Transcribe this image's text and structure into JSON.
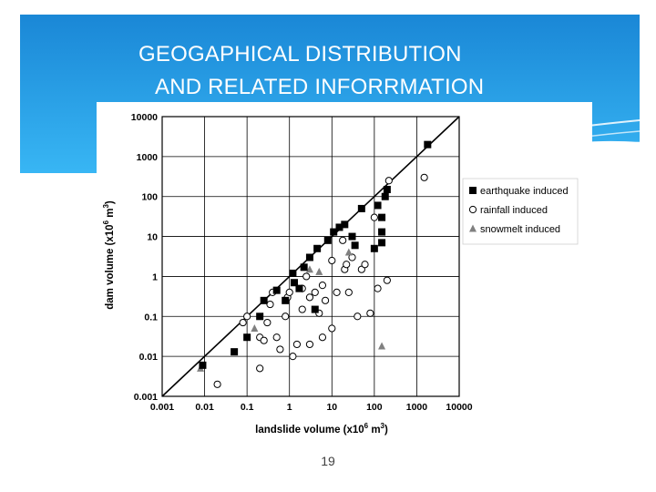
{
  "slide": {
    "title_line1": "GEOGAPHICAL DISTRIBUTION",
    "title_line2": "AND  RELATED INFORRMATION",
    "page_number": "19",
    "colors": {
      "header_top": "#1d8fdc",
      "header_bottom": "#34b3f2",
      "title_text": "#ffffff"
    }
  },
  "chart_data": {
    "type": "scatter",
    "x_scale": "log",
    "y_scale": "log",
    "xlim": [
      0.001,
      10000
    ],
    "ylim": [
      0.001,
      10000
    ],
    "x_ticks": [
      "0.001",
      "0.01",
      "0.1",
      "1",
      "10",
      "100",
      "1000",
      "10000"
    ],
    "y_ticks": [
      "0.001",
      "0.01",
      "0.1",
      "1",
      "10",
      "100",
      "1000",
      "10000"
    ],
    "xlabel_main": "landslide volume (x10",
    "xlabel_sup": "6",
    "xlabel_end": " m",
    "xlabel_sup2": "3",
    "xlabel_close": ")",
    "ylabel_main": "dam volume (x10",
    "ylabel_sup": "6",
    "ylabel_end": " m",
    "ylabel_sup2": "3",
    "ylabel_close": ")",
    "grid": true,
    "legend_position": "right",
    "reference_line": "y = x",
    "series": [
      {
        "name": "earthquake induced",
        "marker": "filled-square",
        "color": "#000000",
        "points": [
          [
            0.009,
            0.006
          ],
          [
            0.05,
            0.013
          ],
          [
            0.1,
            0.03
          ],
          [
            0.2,
            0.1
          ],
          [
            0.25,
            0.25
          ],
          [
            0.5,
            0.45
          ],
          [
            0.8,
            0.25
          ],
          [
            1.2,
            1.2
          ],
          [
            1.3,
            0.7
          ],
          [
            1.7,
            0.5
          ],
          [
            2.2,
            1.7
          ],
          [
            3,
            3
          ],
          [
            4.5,
            5
          ],
          [
            4,
            0.15
          ],
          [
            8,
            8
          ],
          [
            11,
            13
          ],
          [
            15,
            17
          ],
          [
            20,
            20
          ],
          [
            30,
            10
          ],
          [
            35,
            6
          ],
          [
            50,
            50
          ],
          [
            100,
            5
          ],
          [
            120,
            60
          ],
          [
            150,
            30
          ],
          [
            150,
            13
          ],
          [
            150,
            7
          ],
          [
            180,
            100
          ],
          [
            200,
            150
          ],
          [
            1800,
            2000
          ]
        ]
      },
      {
        "name": "rainfall induced",
        "marker": "open-circle",
        "color": "#000000",
        "points": [
          [
            0.02,
            0.002
          ],
          [
            0.08,
            0.07
          ],
          [
            0.1,
            0.1
          ],
          [
            0.2,
            0.005
          ],
          [
            0.2,
            0.03
          ],
          [
            0.25,
            0.025
          ],
          [
            0.3,
            0.07
          ],
          [
            0.35,
            0.2
          ],
          [
            0.4,
            0.4
          ],
          [
            0.5,
            0.03
          ],
          [
            0.6,
            0.015
          ],
          [
            0.8,
            0.1
          ],
          [
            0.9,
            0.3
          ],
          [
            1,
            0.4
          ],
          [
            1.2,
            0.01
          ],
          [
            1.5,
            0.02
          ],
          [
            2,
            0.15
          ],
          [
            2,
            0.5
          ],
          [
            2.5,
            1
          ],
          [
            3,
            0.3
          ],
          [
            3,
            0.02
          ],
          [
            4,
            0.4
          ],
          [
            5,
            0.12
          ],
          [
            6,
            0.6
          ],
          [
            6,
            0.03
          ],
          [
            7,
            0.25
          ],
          [
            10,
            2.5
          ],
          [
            10,
            0.05
          ],
          [
            13,
            0.4
          ],
          [
            18,
            8
          ],
          [
            20,
            1.5
          ],
          [
            22,
            2
          ],
          [
            25,
            0.4
          ],
          [
            30,
            3
          ],
          [
            40,
            0.1
          ],
          [
            50,
            1.5
          ],
          [
            60,
            2
          ],
          [
            80,
            0.12
          ],
          [
            100,
            30
          ],
          [
            120,
            0.5
          ],
          [
            200,
            0.8
          ],
          [
            220,
            250
          ],
          [
            1500,
            300
          ]
        ]
      },
      {
        "name": "snowmelt induced",
        "marker": "filled-triangle",
        "color": "#808080",
        "points": [
          [
            0.008,
            0.005
          ],
          [
            0.15,
            0.05
          ],
          [
            3,
            1.5
          ],
          [
            5,
            1.3
          ],
          [
            25,
            4
          ],
          [
            150,
            0.018
          ]
        ]
      }
    ]
  }
}
